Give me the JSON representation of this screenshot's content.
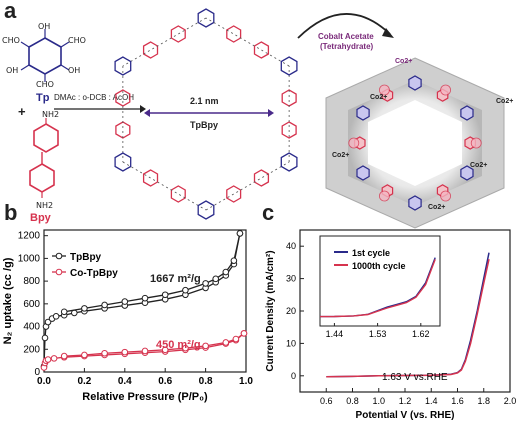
{
  "panels": {
    "a": {
      "label": "a",
      "tp_label": "Tp",
      "plus": "+",
      "bpy_label": "Bpy",
      "reaction_conditions": "DMAc : o-DCB : AcOH",
      "pore_size": "2.1 nm",
      "framework_label": "TpBpy",
      "reagent_line1": "Cobalt Acetate",
      "reagent_line2": "(Tetrahydrate)",
      "cobalt_ion": "Co2+",
      "atom_oh": "OH",
      "atom_cho": "CHO",
      "atom_nh2": "NH2",
      "colors": {
        "tp": "#2a2a8a",
        "bpy": "#d6334e",
        "reagent": "#7a2a7a",
        "arrow": "#4a2a8a"
      }
    },
    "b": {
      "label": "b",
      "annotation_tpbpy": "1667 m²/g",
      "annotation_cotpbpy": "450 m²/g",
      "chart_data": {
        "type": "line",
        "xlabel": "Relative Pressure (P/P₀)",
        "ylabel": "N₂ uptake (cc /g)",
        "xlim": [
          0,
          1.0
        ],
        "ylim": [
          0,
          1250
        ],
        "xticks": [
          "0.0",
          "0.2",
          "0.4",
          "0.6",
          "0.8",
          "1.0"
        ],
        "yticks": [
          "0",
          "200",
          "400",
          "600",
          "800",
          "1000",
          "1200"
        ],
        "legend_position": "top-left",
        "series": [
          {
            "name": "TpBpy",
            "color": "#222222",
            "marker": "circle-open",
            "adsorption": [
              [
                0.0,
                50
              ],
              [
                0.005,
                300
              ],
              [
                0.01,
                400
              ],
              [
                0.02,
                440
              ],
              [
                0.04,
                470
              ],
              [
                0.06,
                490
              ],
              [
                0.1,
                500
              ],
              [
                0.15,
                520
              ],
              [
                0.2,
                535
              ],
              [
                0.3,
                560
              ],
              [
                0.4,
                585
              ],
              [
                0.5,
                610
              ],
              [
                0.6,
                640
              ],
              [
                0.7,
                680
              ],
              [
                0.8,
                740
              ],
              [
                0.85,
                790
              ],
              [
                0.9,
                850
              ],
              [
                0.94,
                950
              ],
              [
                0.97,
                1220
              ]
            ],
            "desorption": [
              [
                0.97,
                1220
              ],
              [
                0.94,
                980
              ],
              [
                0.9,
                880
              ],
              [
                0.85,
                820
              ],
              [
                0.8,
                780
              ],
              [
                0.7,
                720
              ],
              [
                0.6,
                680
              ],
              [
                0.5,
                650
              ],
              [
                0.4,
                620
              ],
              [
                0.3,
                590
              ],
              [
                0.2,
                560
              ],
              [
                0.1,
                530
              ]
            ]
          },
          {
            "name": "Co-TpBpy",
            "color": "#d6334e",
            "marker": "circle-open",
            "adsorption": [
              [
                0.0,
                40
              ],
              [
                0.005,
                80
              ],
              [
                0.01,
                100
              ],
              [
                0.02,
                110
              ],
              [
                0.05,
                120
              ],
              [
                0.1,
                130
              ],
              [
                0.2,
                140
              ],
              [
                0.3,
                150
              ],
              [
                0.4,
                160
              ],
              [
                0.5,
                170
              ],
              [
                0.6,
                180
              ],
              [
                0.7,
                195
              ],
              [
                0.8,
                215
              ],
              [
                0.9,
                250
              ],
              [
                0.95,
                280
              ],
              [
                0.99,
                340
              ]
            ],
            "desorption": [
              [
                0.99,
                340
              ],
              [
                0.95,
                290
              ],
              [
                0.9,
                260
              ],
              [
                0.8,
                230
              ],
              [
                0.7,
                210
              ],
              [
                0.6,
                195
              ],
              [
                0.5,
                185
              ],
              [
                0.4,
                175
              ],
              [
                0.3,
                165
              ],
              [
                0.2,
                150
              ],
              [
                0.1,
                140
              ]
            ]
          }
        ]
      }
    },
    "c": {
      "label": "c",
      "annotation": "1.63 V vs.RHE",
      "inset_legend": [
        "1st cycle",
        "1000th cycle"
      ],
      "chart_data": {
        "type": "line",
        "xlabel": "Potential V (vs. RHE)",
        "ylabel": "Current Density (mA/cm²)",
        "xlim": [
          0.4,
          2.0
        ],
        "ylim": [
          -5,
          45
        ],
        "xticks": [
          "0.6",
          "0.8",
          "1.0",
          "1.2",
          "1.4",
          "1.6",
          "1.8",
          "2.0"
        ],
        "yticks": [
          "0",
          "10",
          "20",
          "30",
          "40"
        ],
        "series": [
          {
            "name": "1st cycle",
            "color": "#2a2a8a",
            "x": [
              0.6,
              0.8,
              1.0,
              1.2,
              1.4,
              1.55,
              1.6,
              1.63,
              1.66,
              1.7,
              1.75,
              1.8,
              1.84
            ],
            "y": [
              -0.3,
              -0.2,
              0.0,
              0.1,
              0.2,
              0.5,
              1.0,
              2.0,
              5.0,
              11.0,
              20.0,
              30.0,
              38.0
            ]
          },
          {
            "name": "1000th cycle",
            "color": "#d6334e",
            "x": [
              0.6,
              0.8,
              1.0,
              1.2,
              1.4,
              1.55,
              1.6,
              1.63,
              1.66,
              1.7,
              1.75,
              1.8,
              1.84
            ],
            "y": [
              -0.3,
              -0.2,
              0.0,
              0.1,
              0.2,
              0.4,
              0.9,
              1.8,
              4.5,
              10.0,
              19.0,
              28.5,
              36.0
            ]
          }
        ],
        "inset": {
          "xlim": [
            1.41,
            1.66
          ],
          "ylim": [
            -5,
            45
          ],
          "xticks": [
            "1.44",
            "1.53",
            "1.62"
          ],
          "series": [
            {
              "name": "1st cycle",
              "color": "#2a2a8a",
              "x": [
                1.41,
                1.44,
                1.48,
                1.51,
                1.53,
                1.55,
                1.57,
                1.59,
                1.61,
                1.63,
                1.65
              ],
              "y": [
                0.2,
                0.3,
                0.6,
                1.5,
                3.5,
                5.5,
                7.0,
                8.5,
                11.5,
                19.0,
                33.0
              ]
            },
            {
              "name": "1000th cycle",
              "color": "#d6334e",
              "x": [
                1.41,
                1.44,
                1.48,
                1.51,
                1.53,
                1.55,
                1.57,
                1.59,
                1.61,
                1.63,
                1.65
              ],
              "y": [
                0.2,
                0.3,
                0.6,
                1.4,
                3.2,
                5.0,
                6.5,
                8.0,
                11.0,
                18.0,
                32.0
              ]
            }
          ]
        }
      }
    }
  }
}
